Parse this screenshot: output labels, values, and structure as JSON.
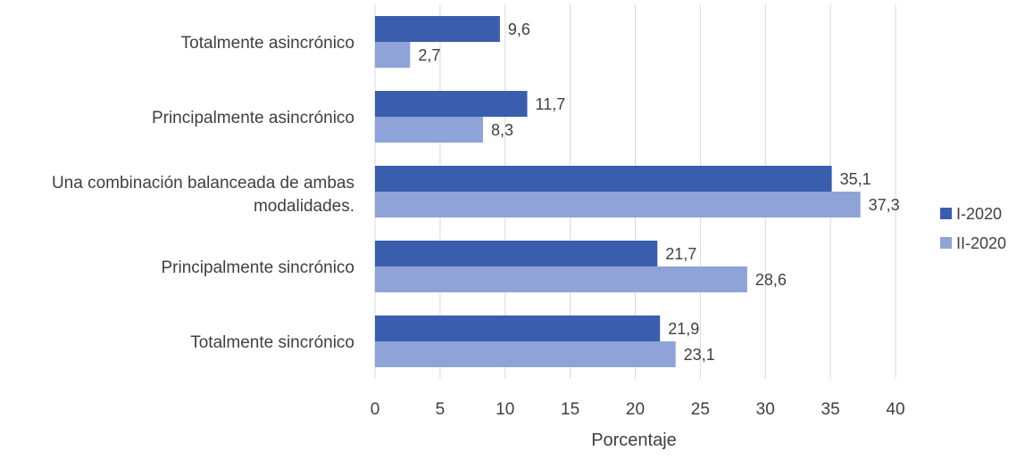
{
  "chart_data": {
    "type": "bar",
    "orientation": "horizontal",
    "categories": [
      "Totalmente asincrónico",
      "Principalmente asincrónico",
      "Una combinación balanceada de ambas modalidades.",
      "Principalmente sincrónico",
      "Totalmente sincrónico"
    ],
    "series": [
      {
        "name": "I-2020",
        "color": "#3A5EAD",
        "values": [
          9.6,
          11.7,
          35.1,
          21.7,
          21.9
        ],
        "labels": [
          "9,6",
          "11,7",
          "35,1",
          "21,7",
          "21,9"
        ]
      },
      {
        "name": "II-2020",
        "color": "#8FA3D8",
        "values": [
          2.7,
          8.3,
          37.3,
          28.6,
          23.1
        ],
        "labels": [
          "2,7",
          "8,3",
          "37,3",
          "28,6",
          "23,1"
        ]
      }
    ],
    "xlabel": "Porcentaje",
    "ylabel": "",
    "xlim": [
      0,
      40
    ],
    "xticks": [
      0,
      5,
      10,
      15,
      20,
      25,
      30,
      35,
      40
    ],
    "grid": true,
    "legend_position": "right"
  }
}
